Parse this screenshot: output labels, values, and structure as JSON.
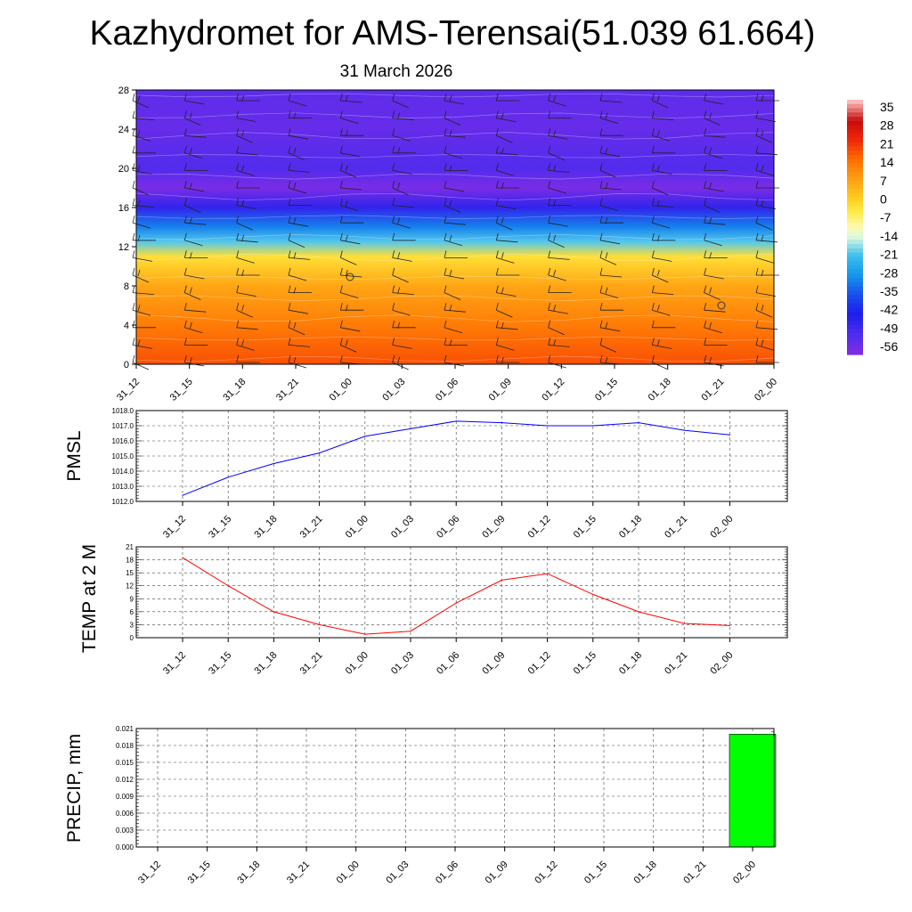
{
  "header": {
    "title": "Kazhydromet for AMS-Terensai(51.039 61.664)",
    "date": "31 March 2026"
  },
  "time_labels": [
    "31_12",
    "31_15",
    "31_18",
    "31_21",
    "01_00",
    "01_03",
    "01_06",
    "01_09",
    "01_12",
    "01_15",
    "01_18",
    "01_21",
    "02_00"
  ],
  "colorbar": {
    "labels": [
      "35",
      "28",
      "21",
      "14",
      "7",
      "0",
      "-7",
      "-14",
      "-21",
      "-28",
      "-35",
      "-42",
      "-49",
      "-56"
    ]
  },
  "chart_data": [
    {
      "type": "heatmap",
      "name": "vertical cross-section (temperature shading + wind barbs)",
      "title": "31 March 2026",
      "x": [
        "31_12",
        "31_15",
        "31_18",
        "31_21",
        "01_00",
        "01_03",
        "01_06",
        "01_09",
        "01_12",
        "01_15",
        "01_18",
        "01_21",
        "02_00"
      ],
      "yticks": [
        0,
        4,
        8,
        12,
        16,
        20,
        24,
        28
      ],
      "ylim": [
        0,
        28
      ],
      "color_scale": [
        35,
        28,
        21,
        14,
        7,
        0,
        -7,
        -14,
        -21,
        -28,
        -35,
        -42,
        -49,
        -56
      ],
      "approx_temperature_by_level": [
        {
          "level": 0,
          "value": 17
        },
        {
          "level": 4,
          "value": 12
        },
        {
          "level": 8,
          "value": 6
        },
        {
          "level": 11,
          "value": -3
        },
        {
          "level": 12.5,
          "value": -20
        },
        {
          "level": 14,
          "value": -30
        },
        {
          "level": 16,
          "value": -45
        },
        {
          "level": 18,
          "value": -56
        },
        {
          "level": 20,
          "value": -50
        },
        {
          "level": 24,
          "value": -53
        },
        {
          "level": 28,
          "value": -52
        }
      ]
    },
    {
      "type": "line",
      "name": "PMSL",
      "ylabel": "PMSL",
      "categories": [
        "31_12",
        "31_15",
        "31_18",
        "31_21",
        "01_00",
        "01_03",
        "01_06",
        "01_09",
        "01_12",
        "01_15",
        "01_18",
        "01_21",
        "02_00"
      ],
      "values": [
        1012.4,
        1013.6,
        1014.5,
        1015.2,
        1016.3,
        1016.8,
        1017.3,
        1017.2,
        1017.0,
        1017.0,
        1017.2,
        1016.7,
        1016.4
      ],
      "ylim": [
        1012.0,
        1018.0
      ],
      "yticks": [
        "1012.0",
        "1013.0",
        "1014.0",
        "1015.0",
        "1016.0",
        "1017.0",
        "1018.0"
      ],
      "color": "#0000ff"
    },
    {
      "type": "line",
      "name": "TEMP at 2 M",
      "ylabel": "TEMP at 2 M",
      "categories": [
        "31_12",
        "31_15",
        "31_18",
        "31_21",
        "01_00",
        "01_03",
        "01_06",
        "01_09",
        "01_12",
        "01_15",
        "01_18",
        "01_21",
        "02_00"
      ],
      "values": [
        18.5,
        12.0,
        6.0,
        3.0,
        0.8,
        1.5,
        8.0,
        13.3,
        14.8,
        10.0,
        6.0,
        3.3,
        2.8
      ],
      "ylim": [
        0,
        21
      ],
      "yticks": [
        "0",
        "3",
        "6",
        "9",
        "12",
        "15",
        "18",
        "21"
      ],
      "color": "#ff0000"
    },
    {
      "type": "bar",
      "name": "PRECIP, mm",
      "ylabel": "PRECIP, mm",
      "categories": [
        "31_12",
        "31_15",
        "31_18",
        "31_21",
        "01_00",
        "01_03",
        "01_06",
        "01_09",
        "01_12",
        "01_15",
        "01_18",
        "01_21",
        "02_00"
      ],
      "values": [
        0,
        0,
        0,
        0,
        0,
        0,
        0,
        0,
        0,
        0,
        0,
        0,
        0.02
      ],
      "ylim": [
        0,
        0.021
      ],
      "yticks": [
        "0.000",
        "0.003",
        "0.006",
        "0.009",
        "0.012",
        "0.015",
        "0.018",
        "0.021"
      ],
      "color": "#00ff00"
    }
  ]
}
